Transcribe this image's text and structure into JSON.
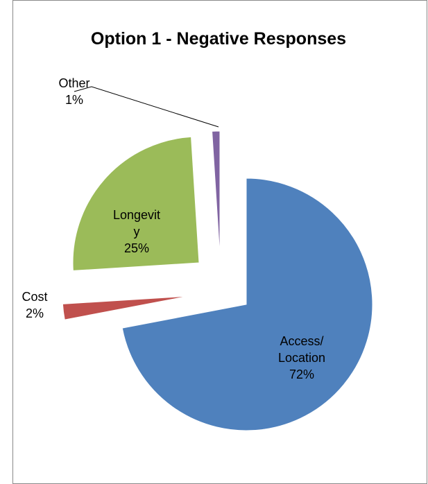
{
  "chart_data": {
    "type": "pie",
    "title": "Option 1 - Negative Responses",
    "categories": [
      "Access/ Location",
      "Cost",
      "Longevity",
      "Other"
    ],
    "values": [
      72,
      2,
      25,
      1
    ],
    "value_labels": [
      "72%",
      "2%",
      "25%",
      "1%"
    ],
    "colors": [
      "#4f81bd",
      "#c0504d",
      "#9bbb59",
      "#8064a2"
    ]
  }
}
